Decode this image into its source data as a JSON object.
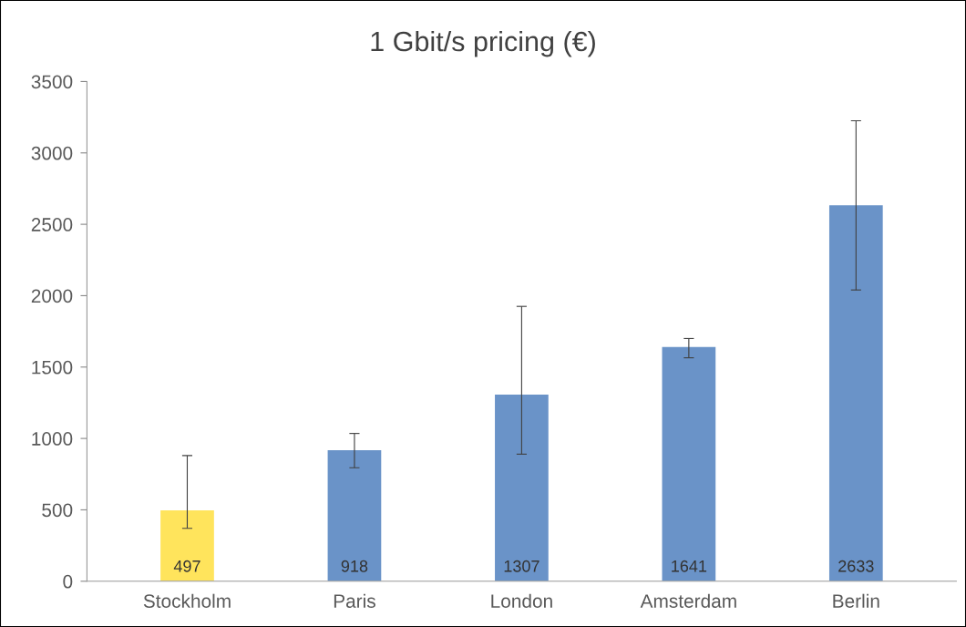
{
  "chart_data": {
    "type": "bar",
    "title": "1 Gbit/s pricing (€)",
    "categories": [
      "Stockholm",
      "Paris",
      "London",
      "Amsterdam",
      "Berlin"
    ],
    "values": [
      497,
      918,
      1307,
      1641,
      2633
    ],
    "colors": [
      "#ffe45c",
      "#6a93c8",
      "#6a93c8",
      "#6a93c8",
      "#6a93c8"
    ],
    "errors": [
      [
        370,
        880
      ],
      [
        795,
        1035
      ],
      [
        890,
        1925
      ],
      [
        1565,
        1700
      ],
      [
        2040,
        3225
      ]
    ],
    "ylim": [
      0,
      3500
    ],
    "yticks": [
      0,
      500,
      1000,
      1500,
      2000,
      2500,
      3000,
      3500
    ],
    "data_labels": true,
    "grid": false,
    "legend": false
  }
}
